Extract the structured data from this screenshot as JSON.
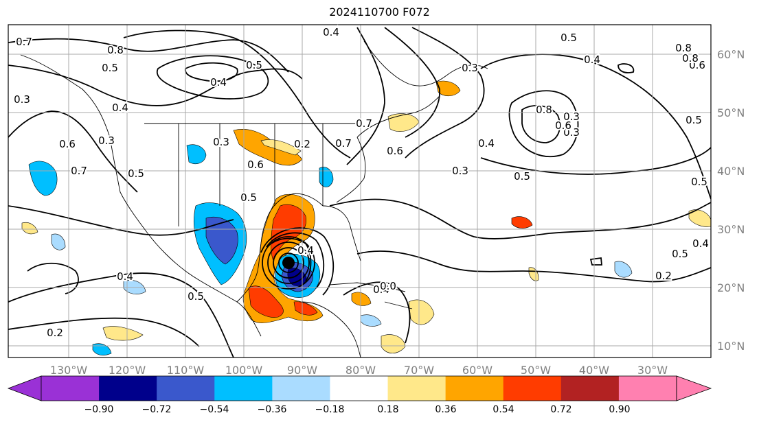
{
  "title": "2024110700 F072",
  "lon_labels": [
    "130°W",
    "120°W",
    "110°W",
    "100°W",
    "90°W",
    "80°W",
    "70°W",
    "60°W",
    "50°W",
    "40°W",
    "30°W"
  ],
  "lat_labels": [
    "60°N",
    "50°N",
    "40°N",
    "30°N",
    "20°N",
    "10°N"
  ],
  "colorbar": {
    "ticks": [
      "−0.90",
      "−0.72",
      "−0.54",
      "−0.36",
      "−0.18",
      "0.18",
      "0.36",
      "0.54",
      "0.72",
      "0.90"
    ],
    "colors": [
      "#9a31d6",
      "#00008b",
      "#3a58cc",
      "#00bfff",
      "#aadcff",
      "#ffffff",
      "#ffe88a",
      "#ffa500",
      "#ff3c00",
      "#b22222",
      "#ff80b0"
    ]
  },
  "contour_labels": [
    "0.7",
    "0.8",
    "0.5",
    "0.4",
    "0.5",
    "0.4",
    "0.3",
    "0.4",
    "0.6",
    "0.7",
    "0.6",
    "0.3",
    "0.2",
    "0.5",
    "0.8",
    "0.3",
    "0.7",
    "0.4",
    "0.3",
    "0.5",
    "0.5",
    "0.8",
    "0.6",
    "0.5",
    "0.4",
    "0.2",
    "0.5",
    "0.3",
    "0.6",
    "0.5",
    "0.4",
    "0.8",
    "0.4",
    "0.3",
    "0.4",
    "0.5",
    "0.5",
    "0.2",
    "0.4",
    "0.6",
    "0.7",
    "0.0",
    "0.3"
  ],
  "colors": {
    "grid": "#a8a8a8",
    "axis_label": "#808080",
    "contour": "#000000"
  }
}
